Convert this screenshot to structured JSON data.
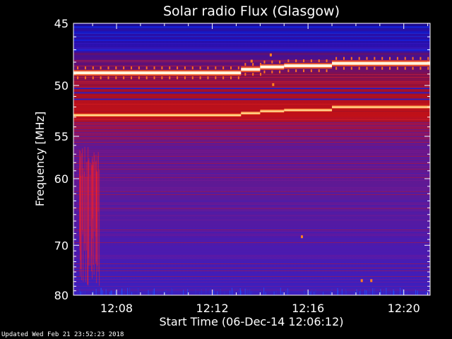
{
  "footer": {
    "updated": "Updated Wed Feb 21 23:52:23 2018"
  },
  "chart_data": {
    "type": "heatmap",
    "title": "Solar radio Flux (Glasgow)",
    "xlabel": "Start Time (06-Dec-14 12:06:12)",
    "ylabel": "Frequency [MHz]",
    "x_ticks": [
      "12:08",
      "12:12",
      "12:16",
      "12:20"
    ],
    "x_tick_minutes": [
      8,
      12,
      16,
      20
    ],
    "xlim_minutes": [
      6.2,
      21.1
    ],
    "y_ticks": [
      45,
      50,
      55,
      60,
      70,
      80
    ],
    "ylim": [
      45,
      80
    ],
    "y_scale": "reciprocal",
    "colors": {
      "background": "#000000",
      "axes": "#ffffff"
    },
    "bright_bands_mhz": [
      {
        "start": 6.2,
        "end": 13.2,
        "freq": 48.9
      },
      {
        "start": 13.2,
        "end": 14.0,
        "freq": 48.6
      },
      {
        "start": 14.0,
        "end": 15.0,
        "freq": 48.4
      },
      {
        "start": 15.0,
        "end": 17.0,
        "freq": 48.3
      },
      {
        "start": 17.0,
        "end": 21.1,
        "freq": 48.1
      }
    ],
    "secondary_bands_mhz": [
      {
        "start": 6.2,
        "end": 13.2,
        "freq": 52.8
      },
      {
        "start": 13.2,
        "end": 14.0,
        "freq": 52.6
      },
      {
        "start": 14.0,
        "end": 15.0,
        "freq": 52.4
      },
      {
        "start": 15.0,
        "end": 17.0,
        "freq": 52.3
      },
      {
        "start": 17.0,
        "end": 21.1,
        "freq": 52.0
      }
    ]
  }
}
